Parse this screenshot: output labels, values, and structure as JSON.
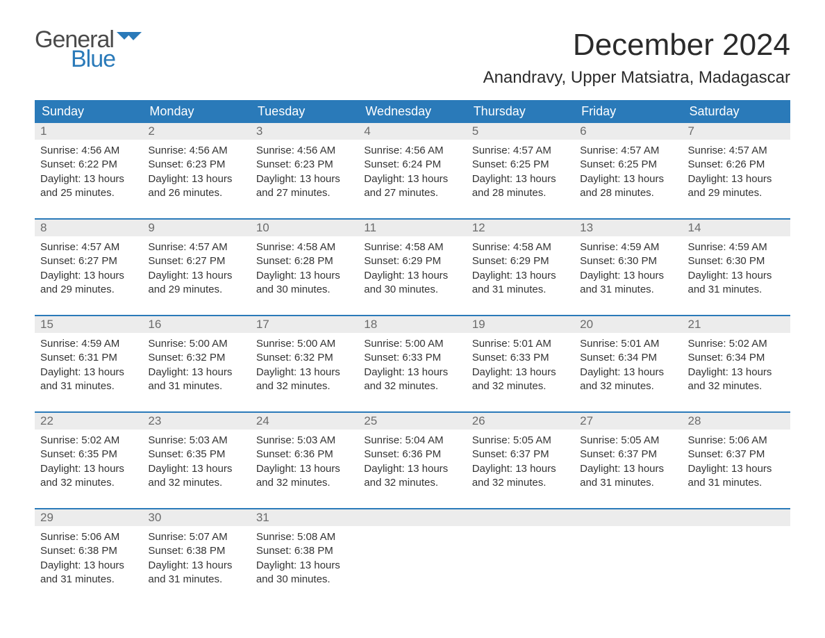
{
  "brand": {
    "part1": "General",
    "part2": "Blue",
    "text_color": "#4a4a4a",
    "accent_color": "#2a7ab9"
  },
  "title": "December 2024",
  "location": "Anandravy, Upper Matsiatra, Madagascar",
  "colors": {
    "header_bg": "#2a7ab9",
    "header_text": "#ffffff",
    "daynum_bg": "#ececec",
    "daynum_text": "#6b6b6b",
    "body_text": "#333333",
    "week_divider": "#2a7ab9",
    "page_bg": "#ffffff"
  },
  "typography": {
    "title_fontsize": 44,
    "location_fontsize": 24,
    "dayheader_fontsize": 18,
    "daynum_fontsize": 17,
    "detail_fontsize": 15,
    "family": "Arial"
  },
  "day_labels": [
    "Sunday",
    "Monday",
    "Tuesday",
    "Wednesday",
    "Thursday",
    "Friday",
    "Saturday"
  ],
  "weeks": [
    [
      {
        "n": "1",
        "sr": "Sunrise: 4:56 AM",
        "ss": "Sunset: 6:22 PM",
        "d1": "Daylight: 13 hours",
        "d2": "and 25 minutes."
      },
      {
        "n": "2",
        "sr": "Sunrise: 4:56 AM",
        "ss": "Sunset: 6:23 PM",
        "d1": "Daylight: 13 hours",
        "d2": "and 26 minutes."
      },
      {
        "n": "3",
        "sr": "Sunrise: 4:56 AM",
        "ss": "Sunset: 6:23 PM",
        "d1": "Daylight: 13 hours",
        "d2": "and 27 minutes."
      },
      {
        "n": "4",
        "sr": "Sunrise: 4:56 AM",
        "ss": "Sunset: 6:24 PM",
        "d1": "Daylight: 13 hours",
        "d2": "and 27 minutes."
      },
      {
        "n": "5",
        "sr": "Sunrise: 4:57 AM",
        "ss": "Sunset: 6:25 PM",
        "d1": "Daylight: 13 hours",
        "d2": "and 28 minutes."
      },
      {
        "n": "6",
        "sr": "Sunrise: 4:57 AM",
        "ss": "Sunset: 6:25 PM",
        "d1": "Daylight: 13 hours",
        "d2": "and 28 minutes."
      },
      {
        "n": "7",
        "sr": "Sunrise: 4:57 AM",
        "ss": "Sunset: 6:26 PM",
        "d1": "Daylight: 13 hours",
        "d2": "and 29 minutes."
      }
    ],
    [
      {
        "n": "8",
        "sr": "Sunrise: 4:57 AM",
        "ss": "Sunset: 6:27 PM",
        "d1": "Daylight: 13 hours",
        "d2": "and 29 minutes."
      },
      {
        "n": "9",
        "sr": "Sunrise: 4:57 AM",
        "ss": "Sunset: 6:27 PM",
        "d1": "Daylight: 13 hours",
        "d2": "and 29 minutes."
      },
      {
        "n": "10",
        "sr": "Sunrise: 4:58 AM",
        "ss": "Sunset: 6:28 PM",
        "d1": "Daylight: 13 hours",
        "d2": "and 30 minutes."
      },
      {
        "n": "11",
        "sr": "Sunrise: 4:58 AM",
        "ss": "Sunset: 6:29 PM",
        "d1": "Daylight: 13 hours",
        "d2": "and 30 minutes."
      },
      {
        "n": "12",
        "sr": "Sunrise: 4:58 AM",
        "ss": "Sunset: 6:29 PM",
        "d1": "Daylight: 13 hours",
        "d2": "and 31 minutes."
      },
      {
        "n": "13",
        "sr": "Sunrise: 4:59 AM",
        "ss": "Sunset: 6:30 PM",
        "d1": "Daylight: 13 hours",
        "d2": "and 31 minutes."
      },
      {
        "n": "14",
        "sr": "Sunrise: 4:59 AM",
        "ss": "Sunset: 6:30 PM",
        "d1": "Daylight: 13 hours",
        "d2": "and 31 minutes."
      }
    ],
    [
      {
        "n": "15",
        "sr": "Sunrise: 4:59 AM",
        "ss": "Sunset: 6:31 PM",
        "d1": "Daylight: 13 hours",
        "d2": "and 31 minutes."
      },
      {
        "n": "16",
        "sr": "Sunrise: 5:00 AM",
        "ss": "Sunset: 6:32 PM",
        "d1": "Daylight: 13 hours",
        "d2": "and 31 minutes."
      },
      {
        "n": "17",
        "sr": "Sunrise: 5:00 AM",
        "ss": "Sunset: 6:32 PM",
        "d1": "Daylight: 13 hours",
        "d2": "and 32 minutes."
      },
      {
        "n": "18",
        "sr": "Sunrise: 5:00 AM",
        "ss": "Sunset: 6:33 PM",
        "d1": "Daylight: 13 hours",
        "d2": "and 32 minutes."
      },
      {
        "n": "19",
        "sr": "Sunrise: 5:01 AM",
        "ss": "Sunset: 6:33 PM",
        "d1": "Daylight: 13 hours",
        "d2": "and 32 minutes."
      },
      {
        "n": "20",
        "sr": "Sunrise: 5:01 AM",
        "ss": "Sunset: 6:34 PM",
        "d1": "Daylight: 13 hours",
        "d2": "and 32 minutes."
      },
      {
        "n": "21",
        "sr": "Sunrise: 5:02 AM",
        "ss": "Sunset: 6:34 PM",
        "d1": "Daylight: 13 hours",
        "d2": "and 32 minutes."
      }
    ],
    [
      {
        "n": "22",
        "sr": "Sunrise: 5:02 AM",
        "ss": "Sunset: 6:35 PM",
        "d1": "Daylight: 13 hours",
        "d2": "and 32 minutes."
      },
      {
        "n": "23",
        "sr": "Sunrise: 5:03 AM",
        "ss": "Sunset: 6:35 PM",
        "d1": "Daylight: 13 hours",
        "d2": "and 32 minutes."
      },
      {
        "n": "24",
        "sr": "Sunrise: 5:03 AM",
        "ss": "Sunset: 6:36 PM",
        "d1": "Daylight: 13 hours",
        "d2": "and 32 minutes."
      },
      {
        "n": "25",
        "sr": "Sunrise: 5:04 AM",
        "ss": "Sunset: 6:36 PM",
        "d1": "Daylight: 13 hours",
        "d2": "and 32 minutes."
      },
      {
        "n": "26",
        "sr": "Sunrise: 5:05 AM",
        "ss": "Sunset: 6:37 PM",
        "d1": "Daylight: 13 hours",
        "d2": "and 32 minutes."
      },
      {
        "n": "27",
        "sr": "Sunrise: 5:05 AM",
        "ss": "Sunset: 6:37 PM",
        "d1": "Daylight: 13 hours",
        "d2": "and 31 minutes."
      },
      {
        "n": "28",
        "sr": "Sunrise: 5:06 AM",
        "ss": "Sunset: 6:37 PM",
        "d1": "Daylight: 13 hours",
        "d2": "and 31 minutes."
      }
    ],
    [
      {
        "n": "29",
        "sr": "Sunrise: 5:06 AM",
        "ss": "Sunset: 6:38 PM",
        "d1": "Daylight: 13 hours",
        "d2": "and 31 minutes."
      },
      {
        "n": "30",
        "sr": "Sunrise: 5:07 AM",
        "ss": "Sunset: 6:38 PM",
        "d1": "Daylight: 13 hours",
        "d2": "and 31 minutes."
      },
      {
        "n": "31",
        "sr": "Sunrise: 5:08 AM",
        "ss": "Sunset: 6:38 PM",
        "d1": "Daylight: 13 hours",
        "d2": "and 30 minutes."
      },
      null,
      null,
      null,
      null
    ]
  ]
}
